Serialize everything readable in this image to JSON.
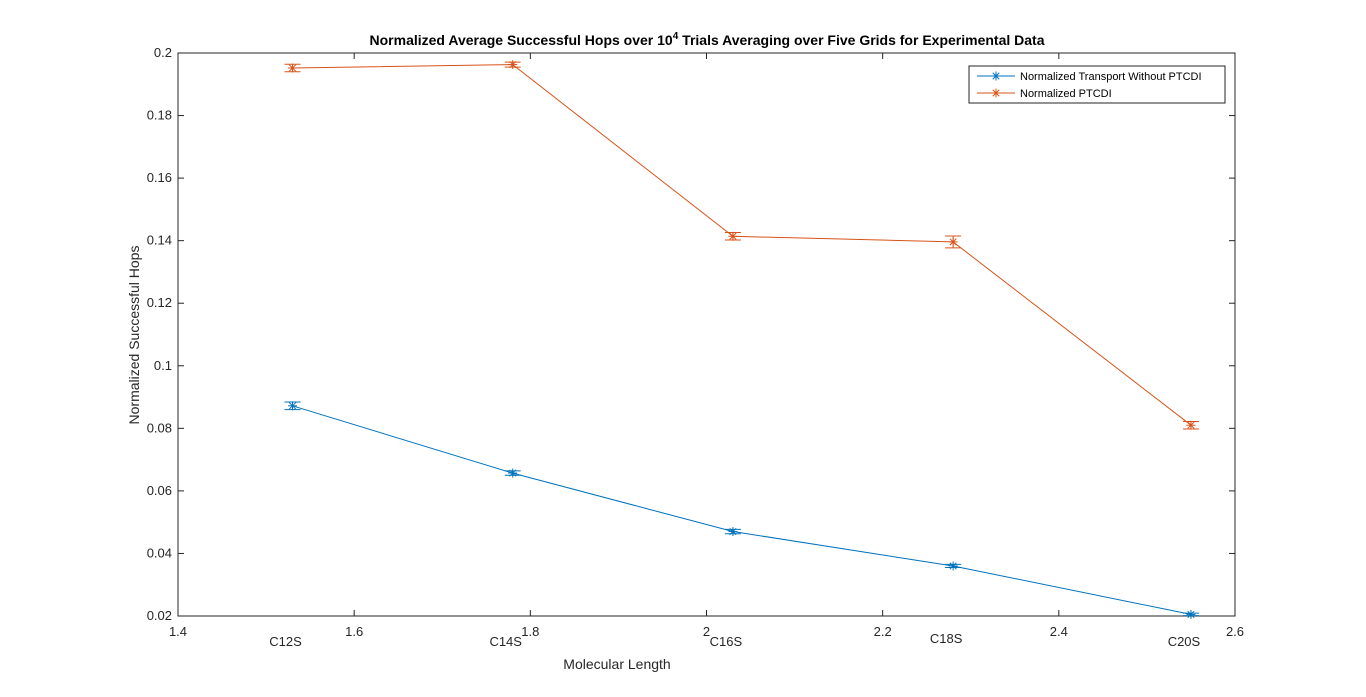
{
  "chart_data": {
    "type": "line",
    "title_main": "Normalized Average Successful Hops over 10",
    "title_sup": "4",
    "title_rest": " Trials Averaging over Five Grids for Experimental Data",
    "xlabel": "Molecular Length",
    "ylabel": "Normalized Successful Hops",
    "xlim": [
      1.4,
      2.6
    ],
    "ylim": [
      0.02,
      0.2
    ],
    "xticks": [
      1.4,
      1.6,
      1.8,
      2.0,
      2.2,
      2.4,
      2.6
    ],
    "xtick_labels": [
      "1.4",
      "1.6",
      "1.8",
      "2",
      "2.2",
      "2.4",
      "2.6"
    ],
    "yticks": [
      0.02,
      0.04,
      0.06,
      0.08,
      0.1,
      0.12,
      0.14,
      0.16,
      0.18,
      0.2
    ],
    "ytick_labels": [
      "0.02",
      "0.04",
      "0.06",
      "0.08",
      "0.1",
      "0.12",
      "0.14",
      "0.16",
      "0.18",
      "0.2"
    ],
    "x": [
      1.53,
      1.78,
      2.03,
      2.28,
      2.55
    ],
    "category_labels": [
      "C12S",
      "C14S",
      "C16S",
      "C18S",
      "C20S"
    ],
    "category_label_offsets": [
      1,
      1,
      1,
      0,
      1
    ],
    "grid": false,
    "legend_position": "top-right",
    "series": [
      {
        "name": "Normalized Transport Without PTCDI",
        "color": "#0072BD",
        "values": [
          0.0872,
          0.0657,
          0.047,
          0.036,
          0.0205
        ],
        "errors": [
          0.0012,
          0.0007,
          0.0007,
          0.0005,
          0.0004
        ]
      },
      {
        "name": "Normalized PTCDI",
        "color": "#D95319",
        "values": [
          0.1952,
          0.1963,
          0.1414,
          0.1396,
          0.081
        ],
        "errors": [
          0.0012,
          0.0008,
          0.0012,
          0.0019,
          0.0012
        ]
      }
    ]
  }
}
